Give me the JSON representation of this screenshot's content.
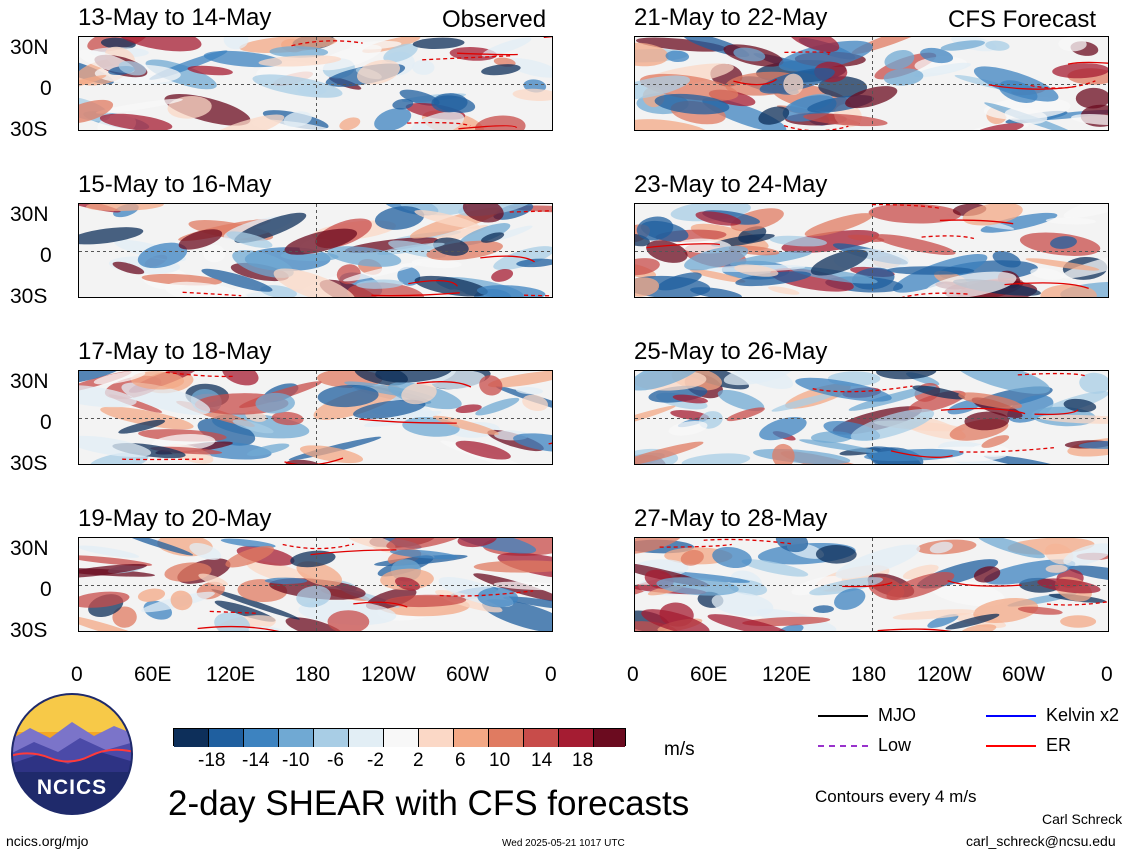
{
  "header": {
    "left_label": "Observed",
    "right_label": "CFS Forecast"
  },
  "panels_left": [
    {
      "date_range": "13-May to 14-May"
    },
    {
      "date_range": "15-May to 16-May"
    },
    {
      "date_range": "17-May to 18-May"
    },
    {
      "date_range": "19-May to 20-May"
    }
  ],
  "panels_right": [
    {
      "date_range": "21-May to 22-May"
    },
    {
      "date_range": "23-May to 24-May"
    },
    {
      "date_range": "25-May to 26-May"
    },
    {
      "date_range": "27-May to 28-May"
    }
  ],
  "lat_labels": [
    "30N",
    "0",
    "30S"
  ],
  "lon_labels": [
    "0",
    "60E",
    "120E",
    "180",
    "120W",
    "60W",
    "0"
  ],
  "colorbar": {
    "ticks": [
      "-18",
      "-14",
      "-10",
      "-6",
      "-2",
      "2",
      "6",
      "10",
      "14",
      "18"
    ],
    "unit": "m/s",
    "colors": [
      "#0d2f5a",
      "#1f5f9f",
      "#3d83c0",
      "#70a9d3",
      "#a8cde5",
      "#e2eef5",
      "#f8f8f8",
      "#fbd8c6",
      "#f3a885",
      "#e07b61",
      "#c84c4a",
      "#a51c32",
      "#6b0b1f"
    ]
  },
  "legend": {
    "items": [
      {
        "label": "MJO",
        "color": "#000000",
        "style": "solid"
      },
      {
        "label": "Kelvin x2",
        "color": "#0000ff",
        "style": "solid"
      },
      {
        "label": "Low",
        "color": "#9932cc",
        "style": "dashed"
      },
      {
        "label": "ER",
        "color": "#ff0000",
        "style": "solid"
      }
    ],
    "contour_note": "Contours every 4 m/s"
  },
  "logo": {
    "text": "NCICS"
  },
  "main_title": "2-day SHEAR with CFS forecasts",
  "footer": {
    "url": "ncics.org/mjo",
    "timestamp": "Wed 2025-05-21 1017 UTC",
    "author": "Carl Schreck",
    "email": "carl_schreck@ncsu.edu"
  }
}
